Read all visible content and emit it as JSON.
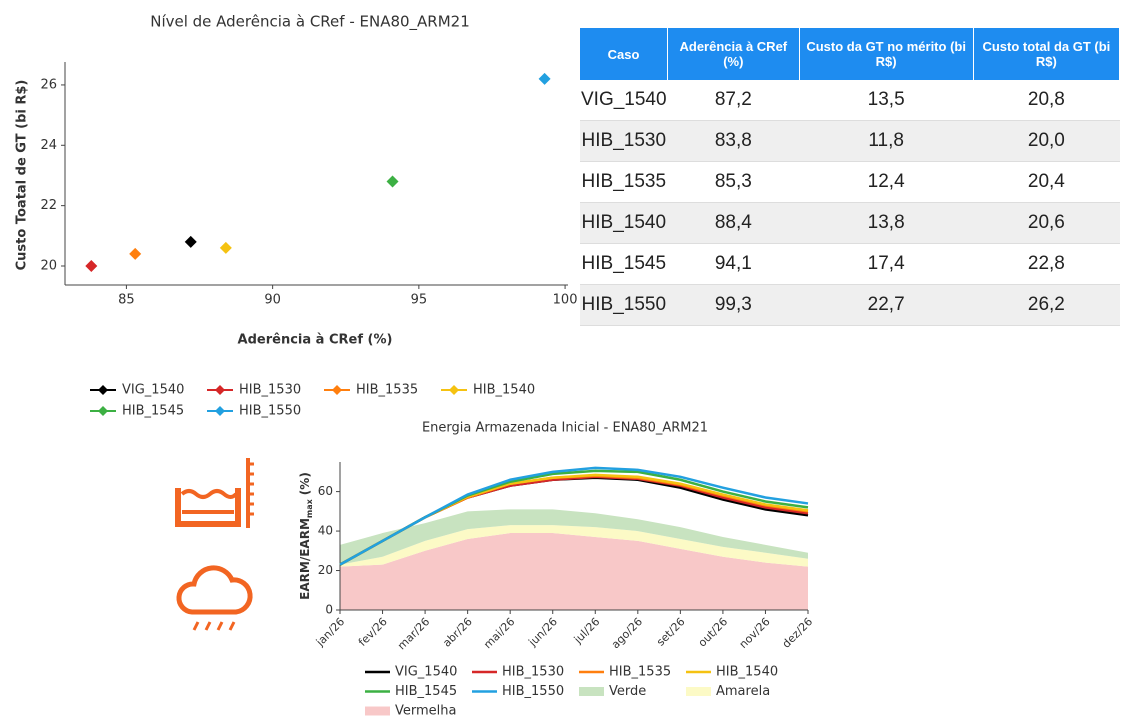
{
  "chart_data": [
    {
      "type": "scatter",
      "title": "Nível de Aderência à CRef - ENA80_ARM21",
      "xlabel": "Aderência à CRef (%)",
      "ylabel": "Custo Toatal de GT (bi R$)",
      "xlim": [
        82.9,
        100.1
      ],
      "ylim": [
        19.37,
        26.76
      ],
      "xticks": [
        85,
        90,
        95,
        100
      ],
      "yticks": [
        20,
        22,
        24,
        26
      ],
      "series": [
        {
          "name": "VIG_1540",
          "color": "#000000",
          "x": [
            87.2
          ],
          "values": [
            20.8
          ]
        },
        {
          "name": "HIB_1530",
          "color": "#d62728",
          "x": [
            83.8
          ],
          "values": [
            20.0
          ]
        },
        {
          "name": "HIB_1535",
          "color": "#ff7f0e",
          "x": [
            85.3
          ],
          "values": [
            20.4
          ]
        },
        {
          "name": "HIB_1540",
          "color": "#f5c211",
          "x": [
            88.4
          ],
          "values": [
            20.6
          ]
        },
        {
          "name": "HIB_1545",
          "color": "#3cb043",
          "x": [
            94.1
          ],
          "values": [
            22.8
          ]
        },
        {
          "name": "HIB_1550",
          "color": "#22a0e0",
          "x": [
            99.3
          ],
          "values": [
            26.2
          ]
        }
      ]
    },
    {
      "type": "line",
      "title": "Energia Armazenada Inicial - ENA80_ARM21",
      "ylabel": "EARM/EARM",
      "ylabel_subscript": "max",
      "ylabel_unit": "(%)",
      "categories": [
        "jan/26",
        "fev/26",
        "mar/26",
        "abr/26",
        "mai/26",
        "jun/26",
        "jul/26",
        "ago/26",
        "set/26",
        "out/26",
        "nov/26",
        "dez/26"
      ],
      "ylim": [
        0,
        75
      ],
      "yticks": [
        0,
        20,
        40,
        60
      ],
      "series": [
        {
          "name": "VIG_1540",
          "color": "#000000",
          "values": [
            23,
            35,
            47,
            57,
            63,
            66,
            67,
            66,
            62,
            56,
            51,
            48
          ]
        },
        {
          "name": "HIB_1530",
          "color": "#d62728",
          "values": [
            23,
            35,
            47,
            57,
            63,
            66,
            67.5,
            66.5,
            63,
            57,
            52,
            49
          ]
        },
        {
          "name": "HIB_1535",
          "color": "#ff7f0e",
          "values": [
            23,
            35,
            47,
            57,
            64,
            67,
            68,
            67,
            63.5,
            58,
            53,
            50
          ]
        },
        {
          "name": "HIB_1540",
          "color": "#f5c211",
          "values": [
            23,
            35,
            47,
            57.5,
            64,
            67,
            68.5,
            67.5,
            64,
            58.5,
            53.5,
            50.5
          ]
        },
        {
          "name": "HIB_1545",
          "color": "#3cb043",
          "values": [
            23,
            35,
            47,
            58,
            65,
            69,
            70.5,
            70,
            66,
            60,
            55,
            52
          ]
        },
        {
          "name": "HIB_1550",
          "color": "#22a0e0",
          "values": [
            23,
            35,
            47,
            58.5,
            66,
            70,
            72,
            71,
            67.5,
            62,
            57,
            54
          ]
        },
        {
          "name": "Verde",
          "color": "#c8e3c0",
          "stack": true,
          "values": [
            10,
            12,
            9,
            9,
            8,
            8,
            7,
            6,
            6,
            5,
            4,
            3
          ]
        },
        {
          "name": "Amarela",
          "color": "#fcfac6",
          "stack": true,
          "values": [
            1,
            4,
            5,
            5,
            4,
            4,
            5,
            5,
            5,
            5,
            5,
            4
          ]
        },
        {
          "name": "Vermelha",
          "color": "#f8c8c8",
          "stack": true,
          "values": [
            22,
            23,
            30,
            36,
            39,
            39,
            37,
            35,
            31,
            27,
            24,
            22
          ]
        }
      ]
    }
  ],
  "table": {
    "header": [
      "Caso",
      "Aderência à CRef (%)",
      "Custo da GT no mérito (bi R$)",
      "Custo total da GT (bi R$)"
    ],
    "rows": [
      [
        "VIG_1540",
        "87,2",
        "13,5",
        "20,8"
      ],
      [
        "HIB_1530",
        "83,8",
        "11,8",
        "20,0"
      ],
      [
        "HIB_1535",
        "85,3",
        "12,4",
        "20,4"
      ],
      [
        "HIB_1540",
        "88,4",
        "13,8",
        "20,6"
      ],
      [
        "HIB_1545",
        "94,1",
        "17,4",
        "22,8"
      ],
      [
        "HIB_1550",
        "99,3",
        "22,7",
        "26,2"
      ]
    ]
  }
}
